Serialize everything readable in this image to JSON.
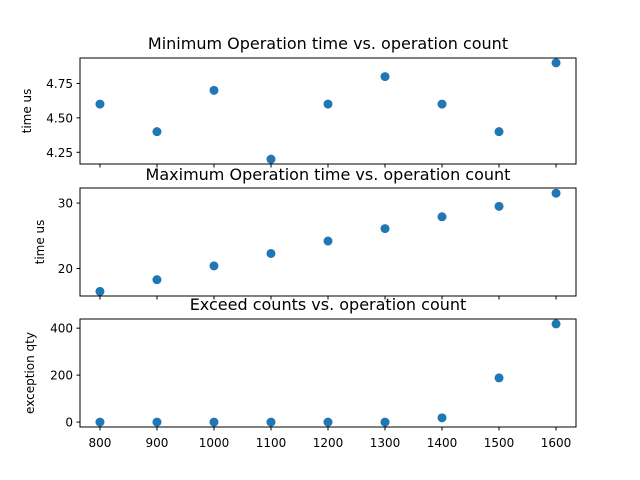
{
  "chart_data": [
    {
      "type": "scatter",
      "title": "Minimum Operation time vs. operation count",
      "ylabel": "time us",
      "xlabel": "",
      "x": [
        800,
        900,
        1000,
        1100,
        1200,
        1300,
        1400,
        1500,
        1600
      ],
      "y": [
        4.6,
        4.4,
        4.7,
        4.2,
        4.6,
        4.8,
        4.6,
        4.4,
        4.9
      ],
      "xlim": [
        765,
        1635
      ],
      "ylim": [
        4.165,
        4.935
      ],
      "yticks": [
        4.25,
        4.5,
        4.75
      ],
      "ytick_labels": [
        "4.25",
        "4.50",
        "4.75"
      ],
      "color": "#1f77b4",
      "grid": false
    },
    {
      "type": "scatter",
      "title": "Maximum Operation time vs. operation count",
      "ylabel": "time us",
      "xlabel": "",
      "x": [
        800,
        900,
        1000,
        1100,
        1200,
        1300,
        1400,
        1500,
        1600
      ],
      "y": [
        16.5,
        18.3,
        20.4,
        22.3,
        24.2,
        26.1,
        27.9,
        29.5,
        31.5
      ],
      "xlim": [
        765,
        1635
      ],
      "ylim": [
        15.8,
        32.3
      ],
      "yticks": [
        20,
        30
      ],
      "ytick_labels": [
        "20",
        "30"
      ],
      "color": "#1f77b4",
      "grid": false
    },
    {
      "type": "scatter",
      "title": "Exceed counts vs. operation count",
      "ylabel": "exception qty",
      "xlabel": "",
      "x": [
        800,
        900,
        1000,
        1100,
        1200,
        1300,
        1400,
        1500,
        1600
      ],
      "y": [
        0,
        0,
        0,
        0,
        0,
        0,
        18,
        188,
        418
      ],
      "xlim": [
        765,
        1635
      ],
      "ylim": [
        -21,
        439
      ],
      "yticks": [
        0,
        200,
        400
      ],
      "ytick_labels": [
        "0",
        "200",
        "400"
      ],
      "xticks": [
        800,
        900,
        1000,
        1100,
        1200,
        1300,
        1400,
        1500,
        1600
      ],
      "xtick_labels": [
        "800",
        "900",
        "1000",
        "1100",
        "1200",
        "1300",
        "1400",
        "1500",
        "1600"
      ],
      "color": "#1f77b4",
      "grid": false
    }
  ]
}
